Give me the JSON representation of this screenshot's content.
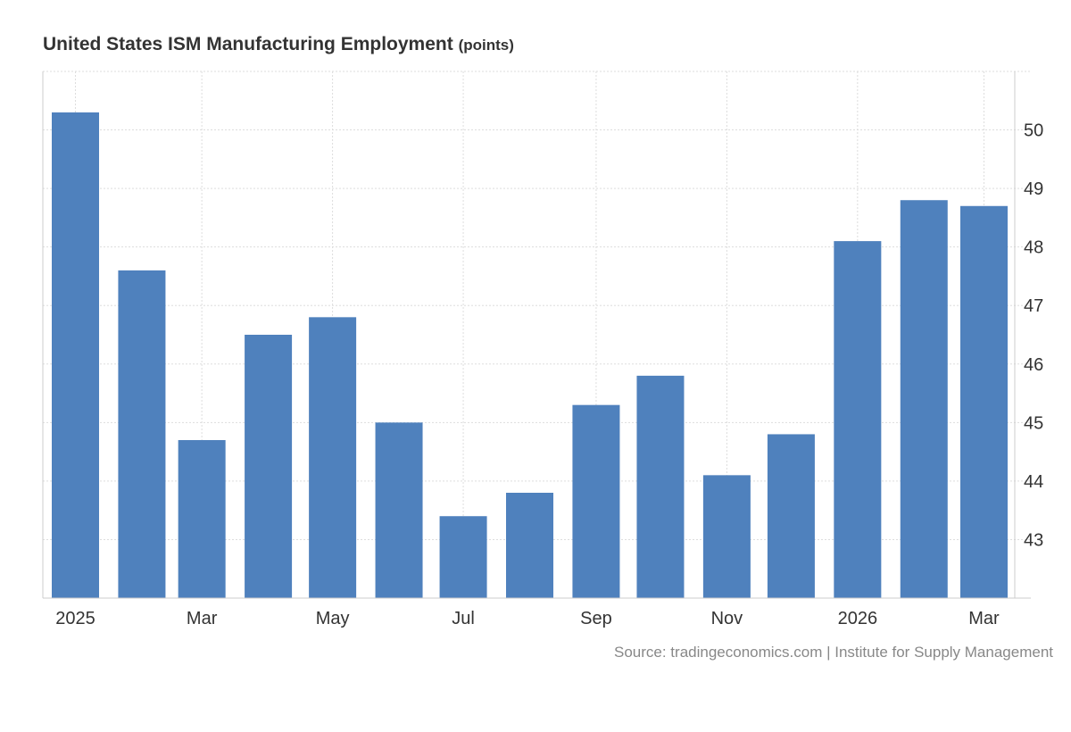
{
  "chart_data": {
    "type": "bar",
    "title": "United States ISM Manufacturing Employment",
    "unit": "(points)",
    "categories": [
      "2025-01",
      "2025-02",
      "2025-03",
      "2025-04",
      "2025-05",
      "2025-06",
      "2025-07",
      "2025-08",
      "2025-09",
      "2025-10",
      "2025-11",
      "2025-12",
      "2026-01",
      "2026-02",
      "2026-03"
    ],
    "values": [
      50.3,
      47.6,
      44.7,
      46.5,
      46.8,
      45.0,
      43.4,
      43.8,
      45.3,
      45.8,
      44.1,
      44.8,
      48.1,
      48.8,
      48.7
    ],
    "x_tick_labels": [
      {
        "date": "2025-01",
        "label": "2025"
      },
      {
        "date": "2025-03",
        "label": "Mar"
      },
      {
        "date": "2025-05",
        "label": "May"
      },
      {
        "date": "2025-07",
        "label": "Jul"
      },
      {
        "date": "2025-09",
        "label": "Sep"
      },
      {
        "date": "2025-11",
        "label": "Nov"
      },
      {
        "date": "2026-01",
        "label": "2026"
      },
      {
        "date": "2026-03",
        "label": "Mar"
      }
    ],
    "y_ticks": [
      43,
      44,
      45,
      46,
      47,
      48,
      49,
      50
    ],
    "ylim": [
      42,
      51
    ],
    "y_axis_side": "right",
    "grid": true,
    "bar_color": "#4f81bd",
    "source": "Source: tradingeconomics.com | Institute for Supply Management"
  }
}
